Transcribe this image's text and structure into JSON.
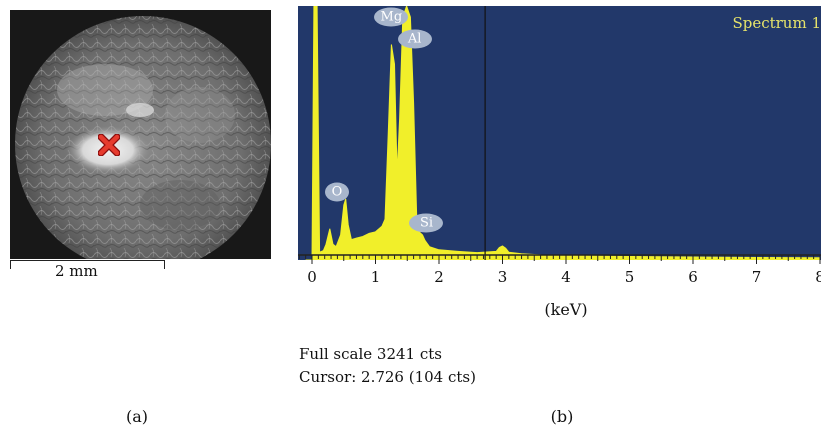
{
  "figure": {
    "panel_a": {
      "caption": "(a)",
      "scale_bar_label": "2 mm"
    },
    "panel_b": {
      "caption": "(b)",
      "spectrum_title": "Spectrum 1",
      "x_axis_label": "(keV)",
      "full_scale_text": "Full scale 3241 cts",
      "cursor_text": "Cursor: 2.726 (104 cts)"
    }
  },
  "chart_data": {
    "type": "line",
    "title": "Spectrum 1",
    "xlabel": "(keV)",
    "ylabel": "",
    "xlim": [
      -0.2,
      8.0
    ],
    "ylim": [
      0,
      3241
    ],
    "x_ticks": [
      "0",
      "1",
      "2",
      "3",
      "4",
      "5",
      "6",
      "7",
      "8"
    ],
    "cursor_x": 2.726,
    "peak_labels": [
      {
        "label": "Mg",
        "x": 1.25
      },
      {
        "label": "Al",
        "x": 1.49
      },
      {
        "label": "O",
        "x": 0.52
      },
      {
        "label": "Si",
        "x": 1.74
      }
    ],
    "series": [
      {
        "x": [
          -0.1,
          0.0,
          0.03,
          0.08,
          0.12,
          0.18,
          0.22,
          0.28,
          0.33,
          0.38,
          0.45,
          0.5,
          0.53,
          0.57,
          0.62,
          0.7,
          0.8,
          0.9,
          1.0,
          1.1,
          1.15,
          1.2,
          1.25,
          1.3,
          1.34,
          1.38,
          1.43,
          1.49,
          1.55,
          1.6,
          1.65,
          1.7,
          1.74,
          1.78,
          1.85,
          2.0,
          2.3,
          2.6,
          2.9,
          2.95,
          3.0,
          3.05,
          3.1,
          3.3,
          3.6,
          4.0,
          5.0,
          6.0,
          7.0,
          8.0
        ],
        "y": [
          0,
          0,
          3241,
          3241,
          100,
          120,
          200,
          400,
          200,
          170,
          320,
          700,
          780,
          450,
          260,
          280,
          300,
          340,
          360,
          430,
          520,
          1600,
          2750,
          2500,
          1100,
          1800,
          3100,
          3241,
          3100,
          2000,
          500,
          350,
          320,
          250,
          170,
          130,
          110,
          95,
          110,
          160,
          180,
          150,
          100,
          80,
          65,
          55,
          45,
          38,
          32,
          28
        ]
      }
    ]
  }
}
